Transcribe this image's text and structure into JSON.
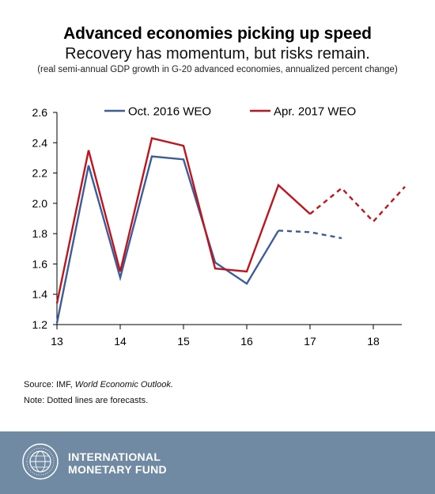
{
  "header": {
    "title": "Advanced economies picking up speed",
    "subtitle": "Recovery has momentum, but risks remain.",
    "note": "(real semi-annual GDP growth in G-20 advanced economies, annualized percent change)"
  },
  "chart_data": {
    "type": "line",
    "title": "Advanced economies picking up speed",
    "xlabel": "",
    "ylabel": "",
    "ylim": [
      1.2,
      2.6
    ],
    "y_ticks": [
      "1.2",
      "1.4",
      "1.6",
      "1.8",
      "2.0",
      "2.2",
      "2.4",
      "2.6"
    ],
    "x_ticks": [
      "13",
      "14",
      "15",
      "16",
      "17",
      "18"
    ],
    "grid": false,
    "legend_position": "top",
    "series": [
      {
        "name": "Oct. 2016 WEO",
        "color": "#3b5d9a",
        "x": [
          2013.0,
          2013.5,
          2014.0,
          2014.5,
          2015.0,
          2015.5,
          2016.0,
          2016.5,
          2017.0,
          2017.5
        ],
        "values": [
          1.21,
          2.25,
          1.51,
          2.31,
          2.29,
          1.61,
          1.47,
          1.82,
          1.81,
          1.77
        ],
        "forecast_from_index": 7
      },
      {
        "name": "Apr. 2017 WEO",
        "color": "#c0141d",
        "x": [
          2013.0,
          2013.5,
          2014.0,
          2014.5,
          2015.0,
          2015.5,
          2016.0,
          2016.5,
          2017.0,
          2017.5,
          2018.0,
          2018.5
        ],
        "values": [
          1.34,
          2.35,
          1.55,
          2.43,
          2.38,
          1.57,
          1.55,
          2.12,
          1.93,
          2.1,
          1.88,
          2.11
        ],
        "forecast_from_index": 8
      }
    ]
  },
  "footer": {
    "source_prefix": "Source: IMF, ",
    "source_italic": "World Economic Outlook.",
    "note": "Note: Dotted lines are forecasts.",
    "org_line1": "INTERNATIONAL",
    "org_line2": "MONETARY FUND",
    "logo_text": "INTERNATIONAL MONETARY FUND"
  }
}
